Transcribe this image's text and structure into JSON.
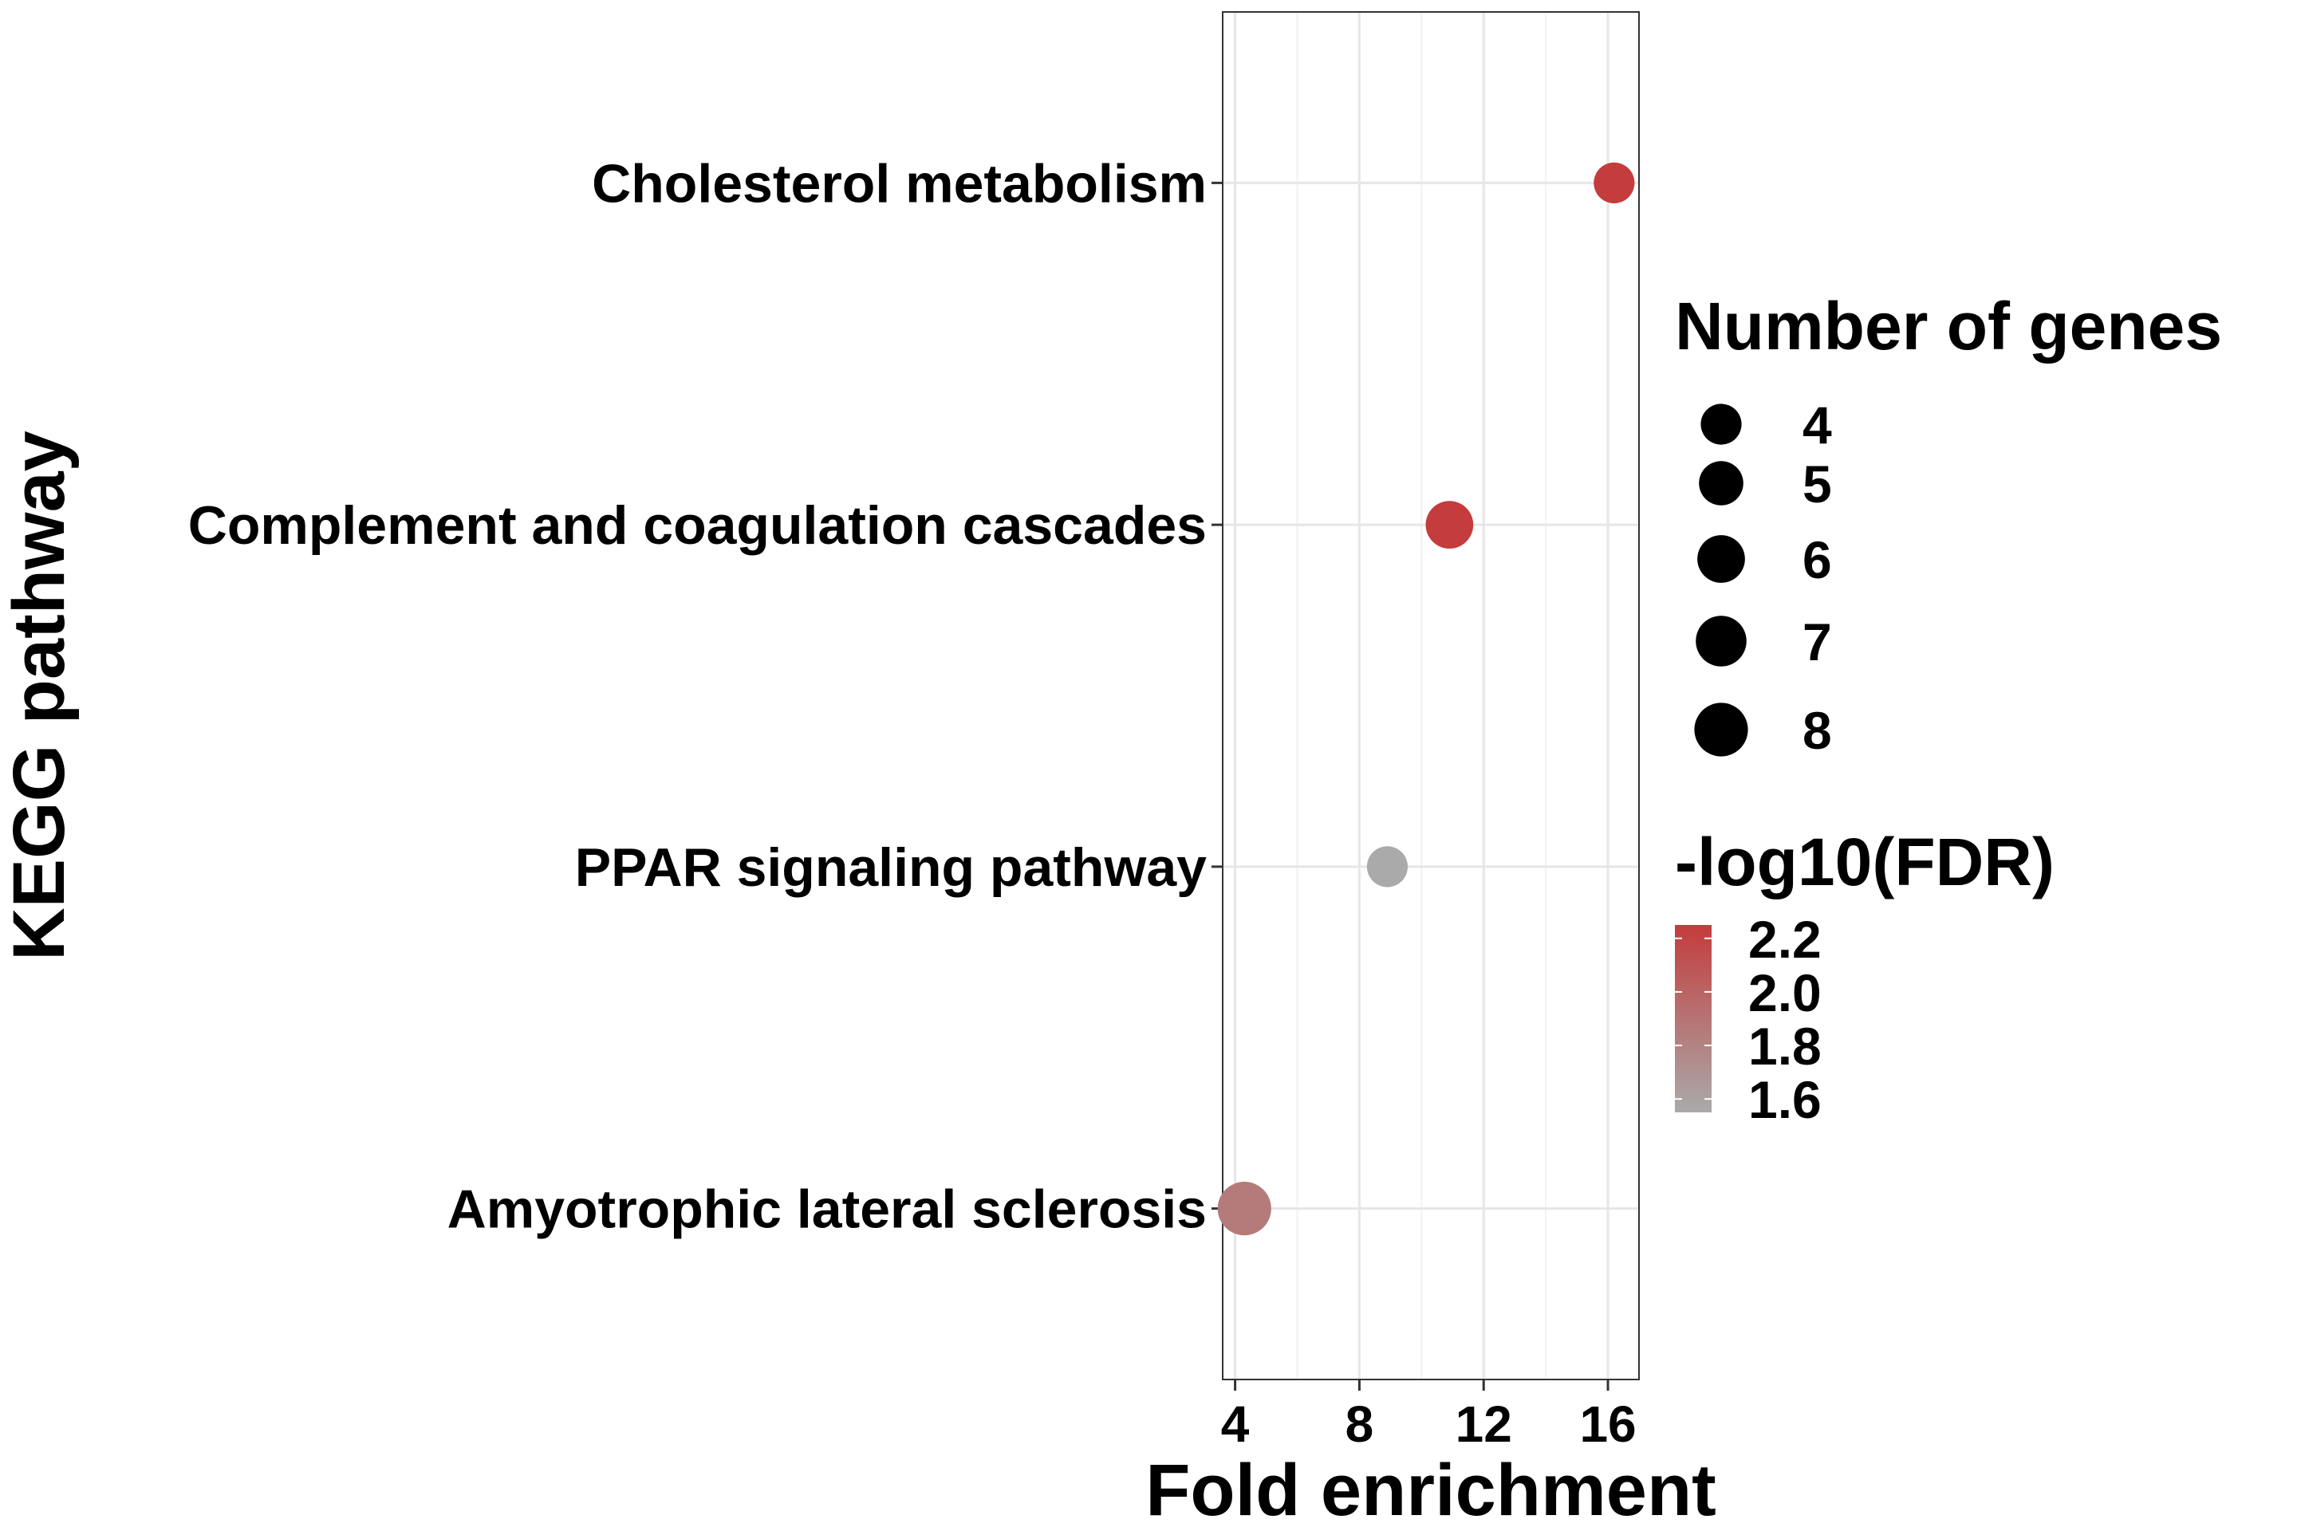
{
  "chart_data": {
    "type": "scatter",
    "xlabel": "Fold enrichment",
    "ylabel": "KEGG pathway",
    "xlim": [
      3.6,
      17.0
    ],
    "xticks": [
      4,
      8,
      12,
      16
    ],
    "x_tick_labels": [
      "4",
      "8",
      "12",
      "16"
    ],
    "categories": [
      "Cholesterol metabolism",
      "Complement and coagulation cascades",
      "PPAR signaling pathway",
      "Amyotrophic lateral sclerosis"
    ],
    "points": [
      {
        "pathway": "Cholesterol metabolism",
        "fold_enrichment": 16.2,
        "number_of_genes": 4,
        "neg_log10_fdr": 2.25
      },
      {
        "pathway": "Complement and coagulation cascades",
        "fold_enrichment": 10.9,
        "number_of_genes": 6,
        "neg_log10_fdr": 2.25
      },
      {
        "pathway": "PPAR signaling pathway",
        "fold_enrichment": 8.9,
        "number_of_genes": 4,
        "neg_log10_fdr": 1.55
      },
      {
        "pathway": "Amyotrophic lateral sclerosis",
        "fold_enrichment": 4.3,
        "number_of_genes": 8,
        "neg_log10_fdr": 1.85
      }
    ],
    "grid": true,
    "size_legend": {
      "title": "Number of genes",
      "values": [
        4,
        5,
        6,
        7,
        8
      ],
      "labels": [
        "4",
        "5",
        "6",
        "7",
        "8"
      ]
    },
    "color_legend": {
      "title": "-log10(FDR)",
      "range": [
        1.55,
        2.25
      ],
      "ticks": [
        1.6,
        1.8,
        2.0,
        2.2
      ],
      "labels": [
        "1.6",
        "1.8",
        "2.0",
        "2.2"
      ],
      "low_color": "#aaaaaa",
      "high_color": "#c43c3c"
    },
    "legend_placement": "right"
  }
}
